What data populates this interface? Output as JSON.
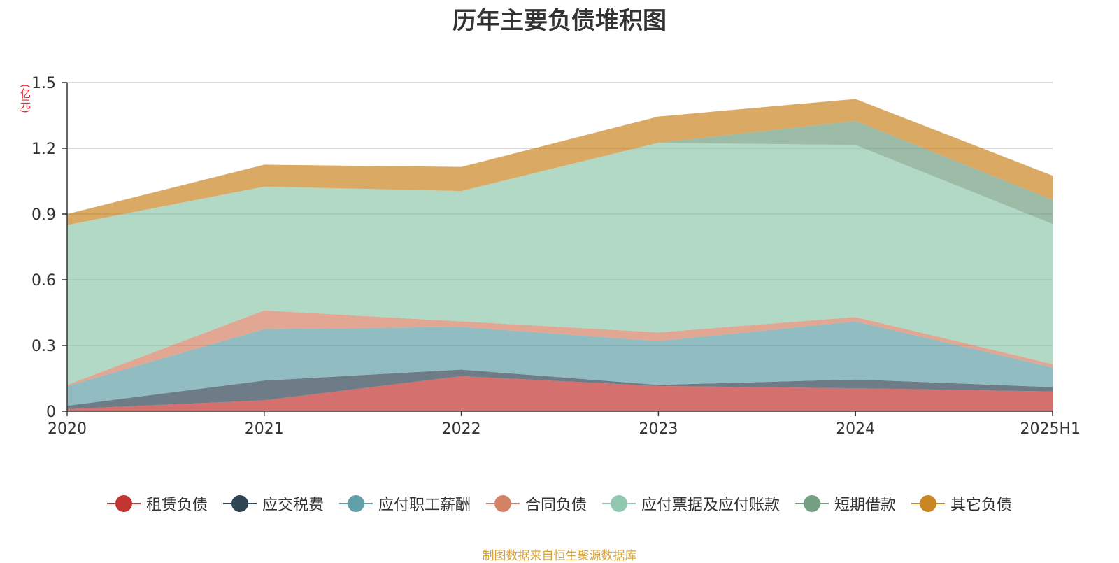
{
  "chart_data": {
    "type": "area",
    "stacked": true,
    "title": "历年主要负债堆积图",
    "ylabel": "(亿元)",
    "categories": [
      "2020",
      "2021",
      "2022",
      "2023",
      "2024",
      "2025H1"
    ],
    "ylim": [
      0,
      1.5
    ],
    "yticks": [
      "0",
      "0.3",
      "0.6",
      "0.9",
      "1.2",
      "1.5"
    ],
    "grid": true,
    "legend_position": "bottom",
    "series": [
      {
        "name": "租赁负债",
        "color": "#c23531",
        "values": [
          0.01,
          0.05,
          0.16,
          0.115,
          0.105,
          0.09
        ]
      },
      {
        "name": "应交税费",
        "color": "#2f4554",
        "values": [
          0.015,
          0.09,
          0.03,
          0.005,
          0.04,
          0.02
        ]
      },
      {
        "name": "应付职工薪酬",
        "color": "#61a0a8",
        "values": [
          0.09,
          0.235,
          0.195,
          0.2,
          0.265,
          0.09
        ]
      },
      {
        "name": "合同负债",
        "color": "#d48265",
        "values": [
          0.005,
          0.085,
          0.025,
          0.04,
          0.02,
          0.015
        ]
      },
      {
        "name": "应付票据及应付账款",
        "color": "#91c7ae",
        "values": [
          0.73,
          0.565,
          0.595,
          0.865,
          0.785,
          0.64
        ]
      },
      {
        "name": "短期借款",
        "color": "#749f83",
        "values": [
          0,
          0,
          0,
          0,
          0.11,
          0.11
        ]
      },
      {
        "name": "其它负债",
        "color": "#ca8622",
        "values": [
          0.05,
          0.1,
          0.11,
          0.12,
          0.1,
          0.11
        ]
      }
    ]
  },
  "footer": {
    "source": "制图数据来自恒生聚源数据库"
  }
}
